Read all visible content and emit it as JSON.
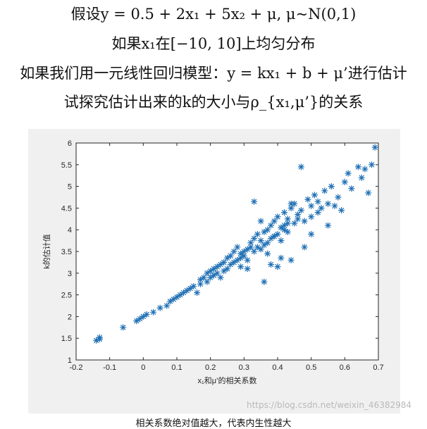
{
  "header": {
    "line1": "假设y = 0.5 + 2x₁ + 5x₂ + μ, μ~N(0,1)",
    "line2": "如果x₁在[−10, 10]上均匀分布",
    "line3": "如果我们用一元线性回归模型：y = kx₁ + b + μ’进行估计",
    "line4": "试探究估计出来的k的大小与ρ_{x₁,μ’}的关系"
  },
  "caption": "相关系数绝对值越大，代表内生性越大",
  "watermark": "https://blog.csdn.net/weixin_46382984",
  "colors": {
    "marker": "#1f6fb4",
    "figure_bg": "#f0f0f0",
    "axes_bg": "#ffffff"
  },
  "chart_data": {
    "type": "scatter",
    "marker": "asterisk",
    "xlabel": "x₁和μ’的相关系数",
    "ylabel": "k的估计值",
    "xlim": [
      -0.2,
      0.7
    ],
    "ylim": [
      1,
      6
    ],
    "xticks": [
      "-0.2",
      "-0.1",
      "0",
      "0.1",
      "0.2",
      "0.3",
      "0.4",
      "0.5",
      "0.6",
      "0.7"
    ],
    "yticks": [
      "1",
      "1.5",
      "2",
      "2.5",
      "3",
      "3.5",
      "4",
      "4.5",
      "5",
      "5.5",
      "6"
    ],
    "grid": false,
    "series": [
      {
        "x": [
          -0.14,
          -0.13,
          -0.13,
          -0.06,
          -0.02,
          -0.01,
          0.0,
          0.01,
          0.03,
          0.05,
          0.07,
          0.08,
          0.09,
          0.1,
          0.11,
          0.12,
          0.13,
          0.14,
          0.15,
          0.16,
          0.17,
          0.17,
          0.18,
          0.19,
          0.19,
          0.2,
          0.2,
          0.21,
          0.21,
          0.22,
          0.22,
          0.23,
          0.23,
          0.24,
          0.24,
          0.25,
          0.25,
          0.26,
          0.26,
          0.27,
          0.27,
          0.28,
          0.28,
          0.29,
          0.29,
          0.3,
          0.3,
          0.31,
          0.31,
          0.32,
          0.32,
          0.33,
          0.33,
          0.34,
          0.34,
          0.35,
          0.35,
          0.36,
          0.36,
          0.37,
          0.37,
          0.38,
          0.38,
          0.39,
          0.39,
          0.4,
          0.4,
          0.41,
          0.41,
          0.42,
          0.42,
          0.43,
          0.43,
          0.44,
          0.45,
          0.45,
          0.46,
          0.47,
          0.48,
          0.49,
          0.5,
          0.5,
          0.51,
          0.52,
          0.53,
          0.54,
          0.55,
          0.56,
          0.58,
          0.6,
          0.61,
          0.64,
          0.65,
          0.66,
          0.67,
          0.68,
          0.69,
          0.33,
          0.37,
          0.4,
          0.44,
          0.47,
          0.35,
          0.39,
          0.43,
          0.46,
          0.52,
          0.48,
          0.5,
          0.42,
          0.36,
          0.44,
          0.41,
          0.38,
          0.31,
          0.29,
          0.55,
          0.57,
          0.62,
          0.59
        ],
        "y": [
          1.45,
          1.48,
          1.52,
          1.75,
          1.9,
          1.95,
          2.0,
          2.05,
          2.1,
          2.2,
          2.25,
          2.35,
          2.4,
          2.45,
          2.5,
          2.55,
          2.6,
          2.65,
          2.7,
          2.55,
          2.75,
          2.85,
          2.9,
          2.8,
          3.0,
          2.9,
          3.05,
          2.95,
          3.1,
          3.0,
          3.15,
          2.9,
          3.2,
          3.05,
          3.25,
          3.1,
          3.35,
          3.2,
          3.4,
          3.25,
          3.5,
          3.3,
          3.6,
          3.35,
          3.45,
          3.4,
          3.5,
          3.55,
          3.3,
          3.6,
          3.7,
          3.5,
          3.8,
          3.6,
          3.9,
          3.55,
          3.75,
          3.65,
          3.95,
          3.7,
          4.0,
          3.8,
          4.1,
          3.85,
          4.2,
          3.9,
          4.3,
          3.75,
          4.05,
          4.1,
          4.4,
          3.95,
          4.25,
          4.5,
          4.15,
          4.6,
          4.35,
          4.45,
          4.2,
          4.7,
          4.3,
          4.55,
          4.8,
          4.4,
          4.5,
          4.9,
          4.6,
          5.0,
          4.75,
          5.1,
          5.3,
          5.45,
          5.2,
          5.4,
          4.85,
          5.5,
          5.9,
          4.65,
          3.45,
          3.15,
          4.6,
          5.45,
          4.2,
          3.85,
          4.15,
          4.25,
          4.65,
          3.6,
          3.9,
          4.0,
          2.8,
          3.3,
          3.35,
          3.2,
          3.1,
          3.15,
          4.1,
          4.55,
          4.95,
          4.45
        ]
      }
    ]
  }
}
